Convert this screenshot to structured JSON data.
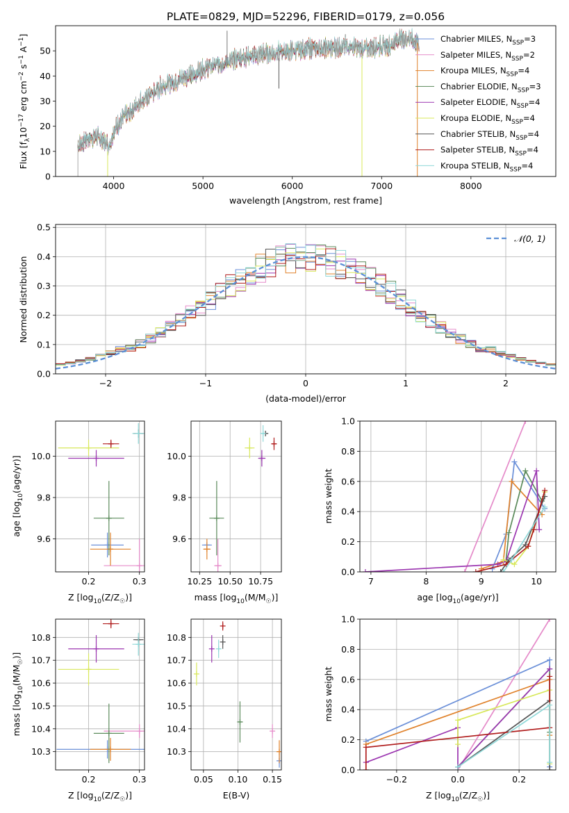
{
  "figure": {
    "title": "PLATE=0829, MJD=52296, FIBERID=0179, z=0.056"
  },
  "models": [
    {
      "name": "Chabrier MILES",
      "nssp": "3",
      "color": "#6a8fd8"
    },
    {
      "name": "Salpeter MILES",
      "nssp": "2",
      "color": "#e58ac9"
    },
    {
      "name": "Kroupa MILES",
      "nssp": "4",
      "color": "#e0822b"
    },
    {
      "name": "Chabrier ELODIE",
      "nssp": "3",
      "color": "#5a8a5a"
    },
    {
      "name": "Salpeter ELODIE",
      "nssp": "4",
      "color": "#9b35b0"
    },
    {
      "name": "Kroupa ELODIE",
      "nssp": "4",
      "color": "#d8e85a"
    },
    {
      "name": "Chabrier STELIB",
      "nssp": "4",
      "color": "#555555"
    },
    {
      "name": "Salpeter STELIB",
      "nssp": "4",
      "color": "#b01c1c"
    },
    {
      "name": "Kroupa STELIB",
      "nssp": "4",
      "color": "#8fd8d8"
    }
  ],
  "chart_data": [
    {
      "id": "spectrum",
      "type": "line",
      "xlabel": "wavelength [Angstrom, rest frame]",
      "ylabel_parts": {
        "main": "Flux [f",
        "lambda": "λ",
        "sub": "10",
        "exp1": "−17",
        "mid": " erg cm",
        "exp2": "−2",
        "s": " s",
        "exp3": "−1",
        "end": " A",
        "exp4": "−1",
        "close": "]"
      },
      "xlim": [
        3350,
        8950
      ],
      "ylim": [
        0,
        60
      ],
      "xticks": [
        "4000",
        "5000",
        "6000",
        "7000",
        "8000"
      ],
      "xtick_values": [
        4000,
        5000,
        6000,
        7000,
        8000
      ],
      "yticks": [
        "0",
        "10",
        "20",
        "30",
        "40",
        "50"
      ],
      "ytick_values": [
        0,
        10,
        20,
        30,
        40,
        50
      ],
      "continuum_x": [
        3600,
        3700,
        3800,
        3900,
        3950,
        4000,
        4100,
        4200,
        4300,
        4400,
        4500,
        4600,
        4700,
        4800,
        4900,
        5000,
        5100,
        5200,
        5300,
        5400,
        5500,
        5600,
        5700,
        5800,
        5900,
        6000,
        6200,
        6400,
        6600,
        6800,
        7000,
        7100,
        7200,
        7300,
        7400,
        7420
      ],
      "continuum_y": [
        12,
        15,
        16,
        14,
        12,
        18,
        23,
        26,
        30,
        32,
        35,
        37,
        38,
        40,
        40,
        43,
        44,
        45,
        46,
        47,
        48,
        48,
        49,
        49,
        50,
        50,
        51,
        51,
        52,
        51,
        52,
        52,
        55,
        55,
        53,
        53
      ],
      "features": [
        {
          "x": 5270,
          "y": 58
        },
        {
          "x": 3933,
          "y": 0
        },
        {
          "x": 6780,
          "y": 0
        },
        {
          "x": 7400,
          "y": 0
        },
        {
          "x": 3600,
          "y": 0
        }
      ]
    },
    {
      "id": "residuals",
      "type": "line",
      "xlabel": "(data-model)/error",
      "ylabel": "Normed distribution",
      "xlim": [
        -2.5,
        2.5
      ],
      "ylim": [
        0,
        0.51
      ],
      "xticks": [
        "−2",
        "−1",
        "0",
        "1",
        "2"
      ],
      "xtick_values": [
        -2,
        -1,
        0,
        1,
        2
      ],
      "yticks": [
        "0.0",
        "0.1",
        "0.2",
        "0.3",
        "0.4",
        "0.5"
      ],
      "ytick_values": [
        0,
        0.1,
        0.2,
        0.3,
        0.4,
        0.5
      ],
      "legend": "𝒩(0, 1)",
      "gaussian": {
        "mu": 0,
        "sigma": 1
      },
      "bin_width": 0.1,
      "grid": true
    },
    {
      "id": "age-vs-Z",
      "type": "scatter",
      "xlabel": "Z [log10(Z/Z☉)]",
      "xlabel_parts": {
        "a": "Z [log",
        "b": "10",
        "c": "(Z/Z",
        "d": "☉",
        "e": ")]"
      },
      "ylabel_parts": {
        "a": "age  [log",
        "b": "10",
        "c": "(age/yr)]"
      },
      "xlim": [
        0.135,
        0.31
      ],
      "ylim": [
        9.44,
        10.17
      ],
      "xticks": [
        "0.2",
        "0.3"
      ],
      "xtick_values": [
        0.2,
        0.3
      ],
      "yticks": [
        "9.6",
        "9.8",
        "10.0"
      ],
      "ytick_values": [
        9.6,
        9.8,
        10.0
      ],
      "points": [
        {
          "m": 0,
          "x": 0.237,
          "y": 9.57,
          "xe": 0.032,
          "ye": 0.06
        },
        {
          "m": 1,
          "x": 0.3,
          "y": 9.47,
          "xe": 0.07,
          "ye": 0.13
        },
        {
          "m": 2,
          "x": 0.243,
          "y": 9.55,
          "xe": 0.04,
          "ye": 0.08
        },
        {
          "m": 3,
          "x": 0.24,
          "y": 9.7,
          "xe": 0.03,
          "ye": 0.18
        },
        {
          "m": 4,
          "x": 0.215,
          "y": 9.99,
          "xe": 0.055,
          "ye": 0.04
        },
        {
          "m": 5,
          "x": 0.2,
          "y": 10.04,
          "xe": 0.06,
          "ye": 0.04
        },
        {
          "m": 6,
          "x": 0.298,
          "y": 10.11,
          "xe": 0.01,
          "ye": 0.02
        },
        {
          "m": 7,
          "x": 0.244,
          "y": 10.06,
          "xe": 0.016,
          "ye": 0.02
        },
        {
          "m": 8,
          "x": 0.298,
          "y": 10.11,
          "xe": 0.012,
          "ye": 0.05
        }
      ]
    },
    {
      "id": "age-vs-mass",
      "type": "scatter",
      "xlabel_parts": {
        "a": "mass [log",
        "b": "10",
        "c": "(M/M",
        "d": "☉",
        "e": ")]"
      },
      "xlim": [
        10.18,
        10.92
      ],
      "ylim": [
        9.44,
        10.17
      ],
      "xticks": [
        "10.25",
        "10.50",
        "10.75"
      ],
      "xtick_values": [
        10.25,
        10.5,
        10.75
      ],
      "yticks": [
        "9.6",
        "9.8",
        "10.0"
      ],
      "ytick_values": [
        9.6,
        9.8,
        10.0
      ],
      "points": [
        {
          "m": 0,
          "x": 10.31,
          "y": 9.57,
          "xe": 0.04,
          "ye": 0.0
        },
        {
          "m": 1,
          "x": 10.4,
          "y": 9.47,
          "xe": 0.03,
          "ye": 0.13
        },
        {
          "m": 2,
          "x": 10.31,
          "y": 9.55,
          "xe": 0.03,
          "ye": 0.05
        },
        {
          "m": 3,
          "x": 10.39,
          "y": 9.7,
          "xe": 0.06,
          "ye": 0.18
        },
        {
          "m": 4,
          "x": 10.76,
          "y": 9.99,
          "xe": 0.03,
          "ye": 0.04
        },
        {
          "m": 5,
          "x": 10.66,
          "y": 10.04,
          "xe": 0.04,
          "ye": 0.05
        },
        {
          "m": 6,
          "x": 10.79,
          "y": 10.11,
          "xe": 0.02,
          "ye": 0.01
        },
        {
          "m": 7,
          "x": 10.86,
          "y": 10.06,
          "xe": 0.02,
          "ye": 0.03
        },
        {
          "m": 8,
          "x": 10.77,
          "y": 10.11,
          "xe": 0.02,
          "ye": 0.04
        }
      ]
    },
    {
      "id": "mass-weight-vs-age",
      "type": "line",
      "xlabel_parts": {
        "a": "age  [log",
        "b": "10",
        "c": "(age/yr)]"
      },
      "ylabel": "mass weight",
      "xlim": [
        6.8,
        10.35
      ],
      "ylim": [
        0,
        1
      ],
      "xticks": [
        "7",
        "8",
        "9",
        "10"
      ],
      "xtick_values": [
        7,
        8,
        9,
        10
      ],
      "yticks": [
        "0.0",
        "0.2",
        "0.4",
        "0.6",
        "0.8",
        "1.0"
      ],
      "ytick_values": [
        0,
        0.2,
        0.4,
        0.6,
        0.8,
        1.0
      ],
      "grid": true,
      "series": [
        {
          "m": 1,
          "x": [
            8.7,
            9.8
          ],
          "y": [
            0.0,
            1.0
          ]
        },
        {
          "m": 0,
          "x": [
            9.2,
            9.45,
            9.6,
            10.15
          ],
          "y": [
            0.02,
            0.25,
            0.73,
            0.42
          ]
        },
        {
          "m": 2,
          "x": [
            9.0,
            9.4,
            9.55,
            10.1
          ],
          "y": [
            0.02,
            0.07,
            0.6,
            0.38
          ]
        },
        {
          "m": 3,
          "x": [
            9.45,
            9.5,
            9.8,
            10.1
          ],
          "y": [
            0.08,
            0.26,
            0.67,
            0.47
          ]
        },
        {
          "m": 4,
          "x": [
            6.9,
            9.3,
            9.45,
            10.0,
            10.05
          ],
          "y": [
            0.0,
            0.05,
            0.07,
            0.67,
            0.28
          ]
        },
        {
          "m": 5,
          "x": [
            9.4,
            9.6,
            9.85,
            10.15
          ],
          "y": [
            0.08,
            0.05,
            0.17,
            0.53
          ]
        },
        {
          "m": 6,
          "x": [
            9.35,
            9.5,
            9.8,
            10.15
          ],
          "y": [
            0.0,
            0.08,
            0.18,
            0.5
          ]
        },
        {
          "m": 7,
          "x": [
            8.9,
            9.45,
            9.85,
            9.95,
            10.15
          ],
          "y": [
            0.0,
            0.05,
            0.17,
            0.28,
            0.54
          ]
        },
        {
          "m": 8,
          "x": [
            9.4,
            9.55,
            10.15
          ],
          "y": [
            0.0,
            0.08,
            0.43
          ]
        }
      ]
    },
    {
      "id": "mass-vs-Z",
      "type": "scatter",
      "xlabel_parts": {
        "a": "Z [log",
        "b": "10",
        "c": "(Z/Z",
        "d": "☉",
        "e": ")]"
      },
      "ylabel_parts": {
        "a": "mass [log",
        "b": "10",
        "c": "(M/M",
        "d": "☉",
        "e": ")]"
      },
      "xlim": [
        0.135,
        0.31
      ],
      "ylim": [
        10.22,
        10.88
      ],
      "xticks": [
        "0.2",
        "0.3"
      ],
      "xtick_values": [
        0.2,
        0.3
      ],
      "yticks": [
        "10.3",
        "10.4",
        "10.5",
        "10.6",
        "10.7",
        "10.8"
      ],
      "ytick_values": [
        10.3,
        10.4,
        10.5,
        10.6,
        10.7,
        10.8
      ],
      "points": [
        {
          "m": 0,
          "x": 0.237,
          "y": 10.31,
          "xe": 0.1,
          "ye": 0.04
        },
        {
          "m": 1,
          "x": 0.3,
          "y": 10.39,
          "xe": 0.07,
          "ye": 0.03
        },
        {
          "m": 2,
          "x": 0.243,
          "y": 10.31,
          "xe": 0.04,
          "ye": 0.05
        },
        {
          "m": 3,
          "x": 0.24,
          "y": 10.38,
          "xe": 0.03,
          "ye": 0.13
        },
        {
          "m": 4,
          "x": 0.215,
          "y": 10.75,
          "xe": 0.055,
          "ye": 0.06
        },
        {
          "m": 5,
          "x": 0.2,
          "y": 10.66,
          "xe": 0.06,
          "ye": 0.07
        },
        {
          "m": 6,
          "x": 0.298,
          "y": 10.79,
          "xe": 0.01,
          "ye": 0.01
        },
        {
          "m": 7,
          "x": 0.244,
          "y": 10.86,
          "xe": 0.016,
          "ye": 0.02
        },
        {
          "m": 8,
          "x": 0.298,
          "y": 10.77,
          "xe": 0.012,
          "ye": 0.05
        }
      ]
    },
    {
      "id": "mass-vs-EBV",
      "type": "scatter",
      "xlabel": "E(B-V)",
      "xlim": [
        0.032,
        0.163
      ],
      "ylim": [
        10.22,
        10.88
      ],
      "xticks": [
        "0.05",
        "0.10",
        "0.15"
      ],
      "xtick_values": [
        0.05,
        0.1,
        0.15
      ],
      "yticks": [
        "10.3",
        "10.4",
        "10.5",
        "10.6",
        "10.7",
        "10.8"
      ],
      "ytick_values": [
        10.3,
        10.4,
        10.5,
        10.6,
        10.7,
        10.8
      ],
      "points": [
        {
          "m": 0,
          "x": 0.16,
          "y": 10.26,
          "xe": 0,
          "ye": 0.03
        },
        {
          "m": 1,
          "x": 0.15,
          "y": 10.39,
          "xe": 0,
          "ye": 0.03
        },
        {
          "m": 2,
          "x": 0.16,
          "y": 10.3,
          "xe": 0,
          "ye": 0.05
        },
        {
          "m": 3,
          "x": 0.103,
          "y": 10.43,
          "xe": 0,
          "ye": 0.09
        },
        {
          "m": 4,
          "x": 0.062,
          "y": 10.75,
          "xe": 0,
          "ye": 0.06
        },
        {
          "m": 5,
          "x": 0.04,
          "y": 10.64,
          "xe": 0,
          "ye": 0.05
        },
        {
          "m": 6,
          "x": 0.078,
          "y": 10.78,
          "xe": 0,
          "ye": 0.03
        },
        {
          "m": 7,
          "x": 0.078,
          "y": 10.85,
          "xe": 0,
          "ye": 0.02
        },
        {
          "m": 8,
          "x": 0.072,
          "y": 10.75,
          "xe": 0,
          "ye": 0.04
        }
      ]
    },
    {
      "id": "mass-weight-vs-Z",
      "type": "line",
      "xlabel_parts": {
        "a": "Z [log",
        "b": "10",
        "c": "(Z/Z",
        "d": "☉",
        "e": ")]"
      },
      "ylabel": "mass weight",
      "xlim": [
        -0.32,
        0.32
      ],
      "ylim": [
        0,
        1
      ],
      "xticks": [
        "−0.2",
        "0.0",
        "0.2"
      ],
      "xtick_values": [
        -0.2,
        0.0,
        0.2
      ],
      "yticks": [
        "0.0",
        "0.2",
        "0.4",
        "0.6",
        "0.8",
        "1.0"
      ],
      "ytick_values": [
        0,
        0.2,
        0.4,
        0.6,
        0.8,
        1.0
      ],
      "grid": true,
      "series": [
        {
          "m": 1,
          "x": [
            0.0,
            0.3
          ],
          "y": [
            0.0,
            1.0
          ]
        },
        {
          "m": 0,
          "x": [
            -0.3,
            0.3,
            0.3
          ],
          "y": [
            0.19,
            0.73,
            0.02
          ]
        },
        {
          "m": 2,
          "x": [
            -0.3,
            -0.3,
            0.3,
            0.3
          ],
          "y": [
            0.15,
            0.17,
            0.6,
            0.23
          ]
        },
        {
          "m": 3,
          "x": [
            0.0,
            0.3,
            0.3
          ],
          "y": [
            0.02,
            0.67,
            0.25
          ]
        },
        {
          "m": 4,
          "x": [
            -0.3,
            0.0,
            0.0,
            0.3
          ],
          "y": [
            0.05,
            0.28,
            0.02,
            0.67
          ]
        },
        {
          "m": 5,
          "x": [
            0.0,
            0.0,
            0.3,
            0.3
          ],
          "y": [
            0.17,
            0.33,
            0.53,
            0.04
          ]
        },
        {
          "m": 6,
          "x": [
            0.0,
            0.3,
            0.3
          ],
          "y": [
            0.02,
            0.46,
            0.0
          ]
        },
        {
          "m": 7,
          "x": [
            -0.3,
            -0.3,
            0.3,
            0.3
          ],
          "y": [
            0.0,
            0.15,
            0.28,
            0.62
          ]
        },
        {
          "m": 8,
          "x": [
            0.0,
            0.3,
            0.3
          ],
          "y": [
            0.02,
            0.43,
            0.05
          ]
        }
      ]
    }
  ]
}
